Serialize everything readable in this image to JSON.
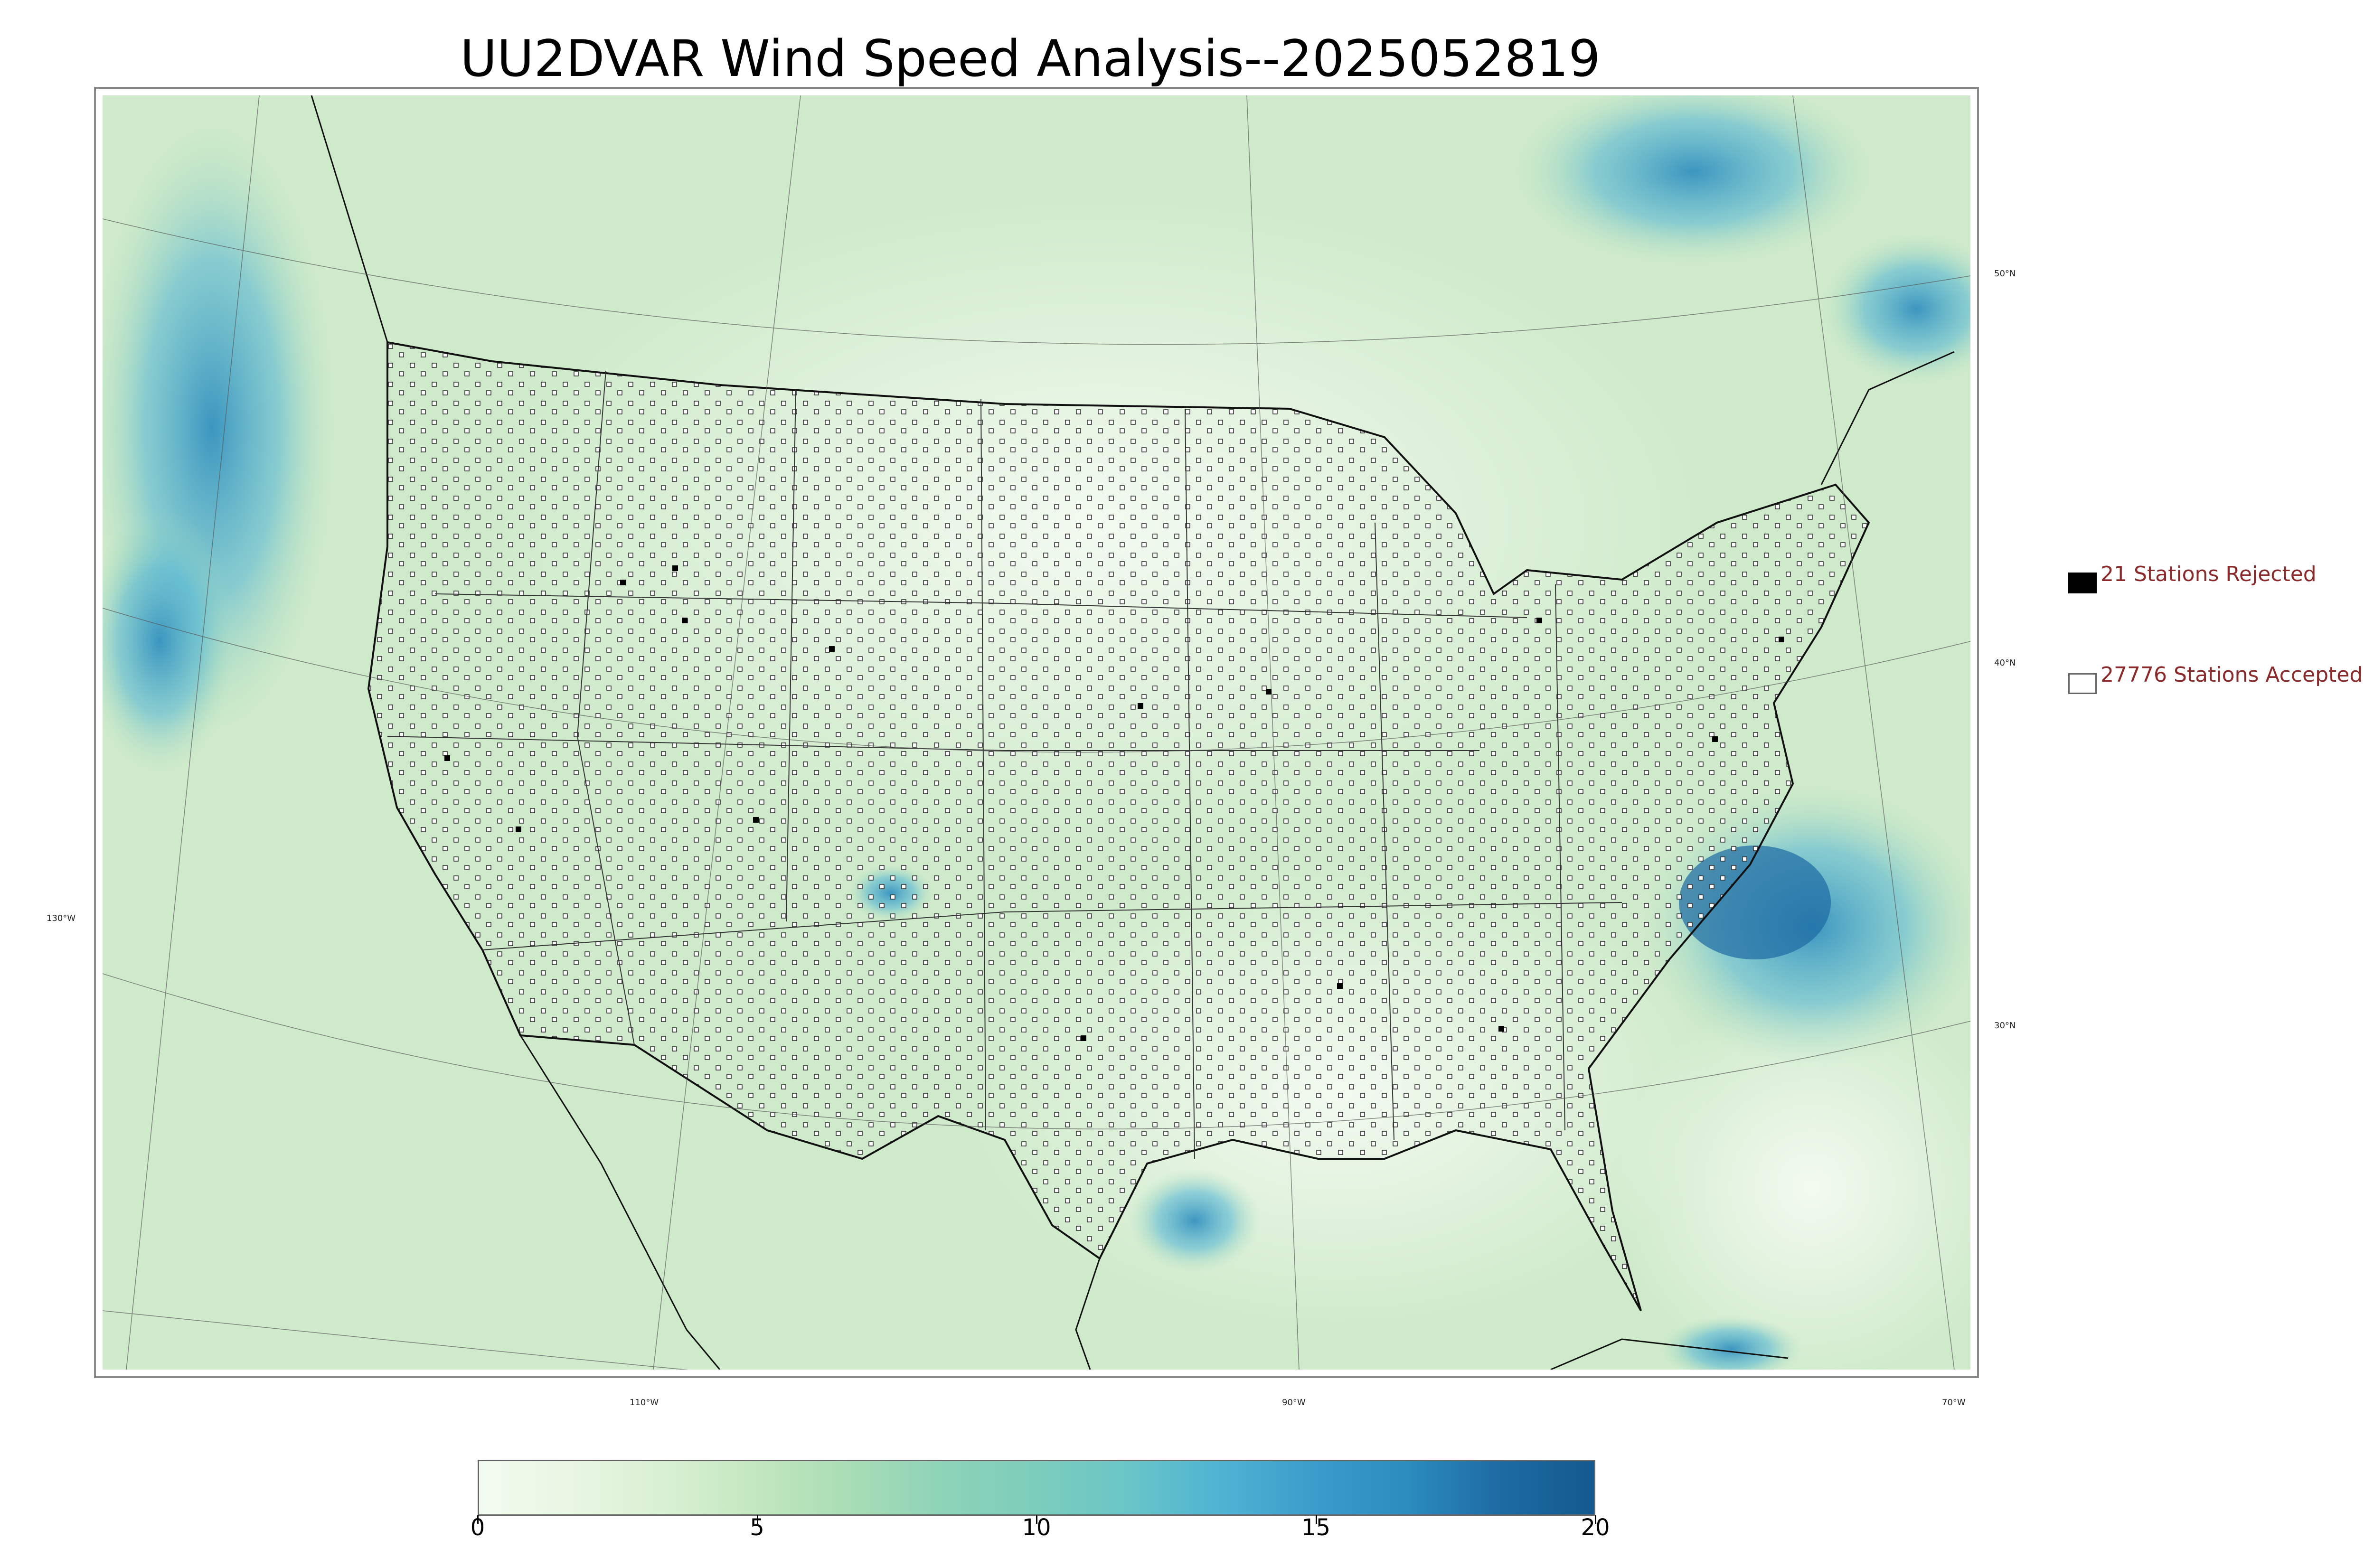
{
  "title": "UU2DVAR Wind Speed Analysis--2025052819",
  "legend": {
    "rejected_label": "21 Stations Rejected",
    "accepted_label": "27776 Stations Accepted",
    "text_color": "#8b2a2a",
    "rejected_color": "#000000",
    "accepted_color": "#ffffff"
  },
  "axes": {
    "lat_labels": [
      "50°N",
      "40°N",
      "30°N"
    ],
    "lon_labels": [
      "130°W",
      "110°W",
      "90°W",
      "70°W"
    ]
  },
  "colorbar": {
    "ticks": [
      "0",
      "5",
      "10",
      "15",
      "20"
    ],
    "min": 0,
    "max": 20,
    "colors": [
      "#f3fbf0",
      "#e8f6e2",
      "#d9f0d3",
      "#c2e7be",
      "#a8ddb5",
      "#8dd3b8",
      "#7ccdbb",
      "#69c5c8",
      "#4eb3d3",
      "#3a9cca",
      "#2b8cbe",
      "#1d6aa3",
      "#135a8e"
    ]
  },
  "map": {
    "background_color": "#d6eed2",
    "station_marker": "hollow-square",
    "borders": "states-and-coastlines"
  }
}
